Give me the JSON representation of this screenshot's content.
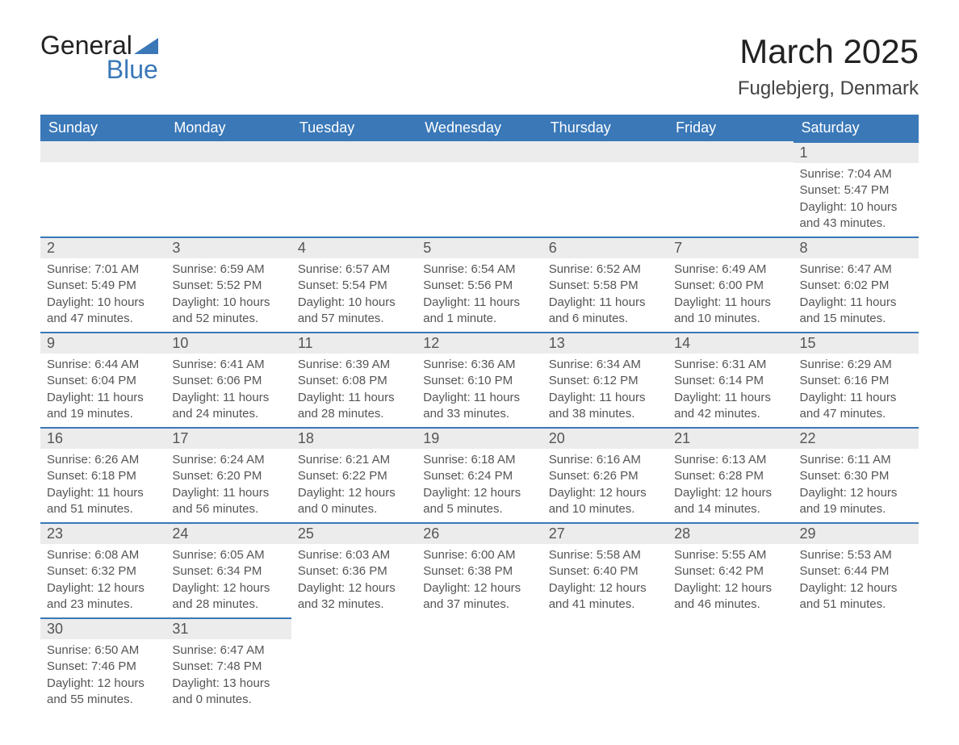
{
  "logo": {
    "text_general": "General",
    "text_blue": "Blue"
  },
  "title": {
    "month": "March 2025",
    "location": "Fuglebjerg, Denmark"
  },
  "colors": {
    "header_bg": "#3a78b8",
    "header_text": "#ffffff",
    "daynum_bg": "#ececec",
    "border_blue": "#3a78b8",
    "body_text": "#555555",
    "page_bg": "#ffffff"
  },
  "weekdays": [
    "Sunday",
    "Monday",
    "Tuesday",
    "Wednesday",
    "Thursday",
    "Friday",
    "Saturday"
  ],
  "grid": [
    [
      {
        "n": "",
        "lines": []
      },
      {
        "n": "",
        "lines": []
      },
      {
        "n": "",
        "lines": []
      },
      {
        "n": "",
        "lines": []
      },
      {
        "n": "",
        "lines": []
      },
      {
        "n": "",
        "lines": []
      },
      {
        "n": "1",
        "lines": [
          "Sunrise: 7:04 AM",
          "Sunset: 5:47 PM",
          "Daylight: 10 hours and 43 minutes."
        ]
      }
    ],
    [
      {
        "n": "2",
        "lines": [
          "Sunrise: 7:01 AM",
          "Sunset: 5:49 PM",
          "Daylight: 10 hours and 47 minutes."
        ]
      },
      {
        "n": "3",
        "lines": [
          "Sunrise: 6:59 AM",
          "Sunset: 5:52 PM",
          "Daylight: 10 hours and 52 minutes."
        ]
      },
      {
        "n": "4",
        "lines": [
          "Sunrise: 6:57 AM",
          "Sunset: 5:54 PM",
          "Daylight: 10 hours and 57 minutes."
        ]
      },
      {
        "n": "5",
        "lines": [
          "Sunrise: 6:54 AM",
          "Sunset: 5:56 PM",
          "Daylight: 11 hours and 1 minute."
        ]
      },
      {
        "n": "6",
        "lines": [
          "Sunrise: 6:52 AM",
          "Sunset: 5:58 PM",
          "Daylight: 11 hours and 6 minutes."
        ]
      },
      {
        "n": "7",
        "lines": [
          "Sunrise: 6:49 AM",
          "Sunset: 6:00 PM",
          "Daylight: 11 hours and 10 minutes."
        ]
      },
      {
        "n": "8",
        "lines": [
          "Sunrise: 6:47 AM",
          "Sunset: 6:02 PM",
          "Daylight: 11 hours and 15 minutes."
        ]
      }
    ],
    [
      {
        "n": "9",
        "lines": [
          "Sunrise: 6:44 AM",
          "Sunset: 6:04 PM",
          "Daylight: 11 hours and 19 minutes."
        ]
      },
      {
        "n": "10",
        "lines": [
          "Sunrise: 6:41 AM",
          "Sunset: 6:06 PM",
          "Daylight: 11 hours and 24 minutes."
        ]
      },
      {
        "n": "11",
        "lines": [
          "Sunrise: 6:39 AM",
          "Sunset: 6:08 PM",
          "Daylight: 11 hours and 28 minutes."
        ]
      },
      {
        "n": "12",
        "lines": [
          "Sunrise: 6:36 AM",
          "Sunset: 6:10 PM",
          "Daylight: 11 hours and 33 minutes."
        ]
      },
      {
        "n": "13",
        "lines": [
          "Sunrise: 6:34 AM",
          "Sunset: 6:12 PM",
          "Daylight: 11 hours and 38 minutes."
        ]
      },
      {
        "n": "14",
        "lines": [
          "Sunrise: 6:31 AM",
          "Sunset: 6:14 PM",
          "Daylight: 11 hours and 42 minutes."
        ]
      },
      {
        "n": "15",
        "lines": [
          "Sunrise: 6:29 AM",
          "Sunset: 6:16 PM",
          "Daylight: 11 hours and 47 minutes."
        ]
      }
    ],
    [
      {
        "n": "16",
        "lines": [
          "Sunrise: 6:26 AM",
          "Sunset: 6:18 PM",
          "Daylight: 11 hours and 51 minutes."
        ]
      },
      {
        "n": "17",
        "lines": [
          "Sunrise: 6:24 AM",
          "Sunset: 6:20 PM",
          "Daylight: 11 hours and 56 minutes."
        ]
      },
      {
        "n": "18",
        "lines": [
          "Sunrise: 6:21 AM",
          "Sunset: 6:22 PM",
          "Daylight: 12 hours and 0 minutes."
        ]
      },
      {
        "n": "19",
        "lines": [
          "Sunrise: 6:18 AM",
          "Sunset: 6:24 PM",
          "Daylight: 12 hours and 5 minutes."
        ]
      },
      {
        "n": "20",
        "lines": [
          "Sunrise: 6:16 AM",
          "Sunset: 6:26 PM",
          "Daylight: 12 hours and 10 minutes."
        ]
      },
      {
        "n": "21",
        "lines": [
          "Sunrise: 6:13 AM",
          "Sunset: 6:28 PM",
          "Daylight: 12 hours and 14 minutes."
        ]
      },
      {
        "n": "22",
        "lines": [
          "Sunrise: 6:11 AM",
          "Sunset: 6:30 PM",
          "Daylight: 12 hours and 19 minutes."
        ]
      }
    ],
    [
      {
        "n": "23",
        "lines": [
          "Sunrise: 6:08 AM",
          "Sunset: 6:32 PM",
          "Daylight: 12 hours and 23 minutes."
        ]
      },
      {
        "n": "24",
        "lines": [
          "Sunrise: 6:05 AM",
          "Sunset: 6:34 PM",
          "Daylight: 12 hours and 28 minutes."
        ]
      },
      {
        "n": "25",
        "lines": [
          "Sunrise: 6:03 AM",
          "Sunset: 6:36 PM",
          "Daylight: 12 hours and 32 minutes."
        ]
      },
      {
        "n": "26",
        "lines": [
          "Sunrise: 6:00 AM",
          "Sunset: 6:38 PM",
          "Daylight: 12 hours and 37 minutes."
        ]
      },
      {
        "n": "27",
        "lines": [
          "Sunrise: 5:58 AM",
          "Sunset: 6:40 PM",
          "Daylight: 12 hours and 41 minutes."
        ]
      },
      {
        "n": "28",
        "lines": [
          "Sunrise: 5:55 AM",
          "Sunset: 6:42 PM",
          "Daylight: 12 hours and 46 minutes."
        ]
      },
      {
        "n": "29",
        "lines": [
          "Sunrise: 5:53 AM",
          "Sunset: 6:44 PM",
          "Daylight: 12 hours and 51 minutes."
        ]
      }
    ],
    [
      {
        "n": "30",
        "lines": [
          "Sunrise: 6:50 AM",
          "Sunset: 7:46 PM",
          "Daylight: 12 hours and 55 minutes."
        ]
      },
      {
        "n": "31",
        "lines": [
          "Sunrise: 6:47 AM",
          "Sunset: 7:48 PM",
          "Daylight: 13 hours and 0 minutes."
        ]
      },
      {
        "n": "",
        "lines": []
      },
      {
        "n": "",
        "lines": []
      },
      {
        "n": "",
        "lines": []
      },
      {
        "n": "",
        "lines": []
      },
      {
        "n": "",
        "lines": []
      }
    ]
  ]
}
